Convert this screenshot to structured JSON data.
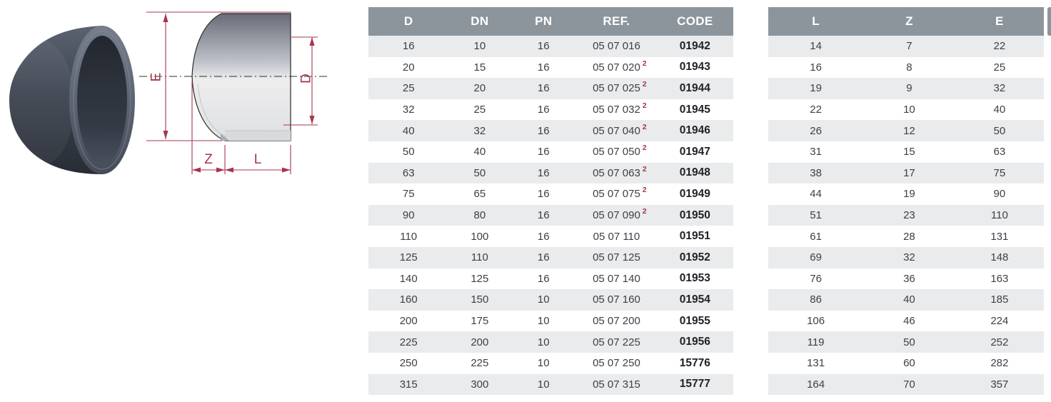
{
  "diagram": {
    "labels": {
      "e": "E",
      "d": "D",
      "z": "Z",
      "l": "L"
    }
  },
  "colors": {
    "header_bg": "#8c959b",
    "row_alt": "#e9ebec",
    "accent_red": "#a8344e",
    "cell_text": "#3d4046",
    "code_text": "#202227"
  },
  "tables": [
    {
      "name": "spec-table-main",
      "headers": [
        "D",
        "DN",
        "PN",
        "REF.",
        "CODE"
      ],
      "sup_column": 3,
      "rows": [
        {
          "cells": [
            "16",
            "10",
            "16",
            "05 07 016",
            "01942"
          ],
          "sup": ""
        },
        {
          "cells": [
            "20",
            "15",
            "16",
            "05 07 020",
            "01943"
          ],
          "sup": "2"
        },
        {
          "cells": [
            "25",
            "20",
            "16",
            "05 07 025",
            "01944"
          ],
          "sup": "2"
        },
        {
          "cells": [
            "32",
            "25",
            "16",
            "05 07 032",
            "01945"
          ],
          "sup": "2"
        },
        {
          "cells": [
            "40",
            "32",
            "16",
            "05 07 040",
            "01946"
          ],
          "sup": "2"
        },
        {
          "cells": [
            "50",
            "40",
            "16",
            "05 07 050",
            "01947"
          ],
          "sup": "2"
        },
        {
          "cells": [
            "63",
            "50",
            "16",
            "05 07 063",
            "01948"
          ],
          "sup": "2"
        },
        {
          "cells": [
            "75",
            "65",
            "16",
            "05 07 075",
            "01949"
          ],
          "sup": "2"
        },
        {
          "cells": [
            "90",
            "80",
            "16",
            "05 07 090",
            "01950"
          ],
          "sup": "2"
        },
        {
          "cells": [
            "110",
            "100",
            "16",
            "05 07 110",
            "01951"
          ],
          "sup": ""
        },
        {
          "cells": [
            "125",
            "110",
            "16",
            "05 07 125",
            "01952"
          ],
          "sup": ""
        },
        {
          "cells": [
            "140",
            "125",
            "16",
            "05 07 140",
            "01953"
          ],
          "sup": ""
        },
        {
          "cells": [
            "160",
            "150",
            "10",
            "05 07 160",
            "01954"
          ],
          "sup": ""
        },
        {
          "cells": [
            "200",
            "175",
            "10",
            "05 07 200",
            "01955"
          ],
          "sup": ""
        },
        {
          "cells": [
            "225",
            "200",
            "10",
            "05 07 225",
            "01956"
          ],
          "sup": ""
        },
        {
          "cells": [
            "250",
            "225",
            "10",
            "05 07 250",
            "15776"
          ],
          "sup": ""
        },
        {
          "cells": [
            "315",
            "300",
            "10",
            "05 07 315",
            "15777"
          ],
          "sup": ""
        }
      ]
    },
    {
      "name": "spec-table-lze",
      "headers": [
        "L",
        "Z",
        "E"
      ],
      "sup_column": -1,
      "rows": [
        {
          "cells": [
            "14",
            "7",
            "22"
          ],
          "sup": ""
        },
        {
          "cells": [
            "16",
            "8",
            "25"
          ],
          "sup": ""
        },
        {
          "cells": [
            "19",
            "9",
            "32"
          ],
          "sup": ""
        },
        {
          "cells": [
            "22",
            "10",
            "40"
          ],
          "sup": ""
        },
        {
          "cells": [
            "26",
            "12",
            "50"
          ],
          "sup": ""
        },
        {
          "cells": [
            "31",
            "15",
            "63"
          ],
          "sup": ""
        },
        {
          "cells": [
            "38",
            "17",
            "75"
          ],
          "sup": ""
        },
        {
          "cells": [
            "44",
            "19",
            "90"
          ],
          "sup": ""
        },
        {
          "cells": [
            "51",
            "23",
            "110"
          ],
          "sup": ""
        },
        {
          "cells": [
            "61",
            "28",
            "131"
          ],
          "sup": ""
        },
        {
          "cells": [
            "69",
            "32",
            "148"
          ],
          "sup": ""
        },
        {
          "cells": [
            "76",
            "36",
            "163"
          ],
          "sup": ""
        },
        {
          "cells": [
            "86",
            "40",
            "185"
          ],
          "sup": ""
        },
        {
          "cells": [
            "106",
            "46",
            "224"
          ],
          "sup": ""
        },
        {
          "cells": [
            "119",
            "50",
            "252"
          ],
          "sup": ""
        },
        {
          "cells": [
            "131",
            "60",
            "282"
          ],
          "sup": ""
        },
        {
          "cells": [
            "164",
            "70",
            "357"
          ],
          "sup": ""
        }
      ]
    }
  ]
}
